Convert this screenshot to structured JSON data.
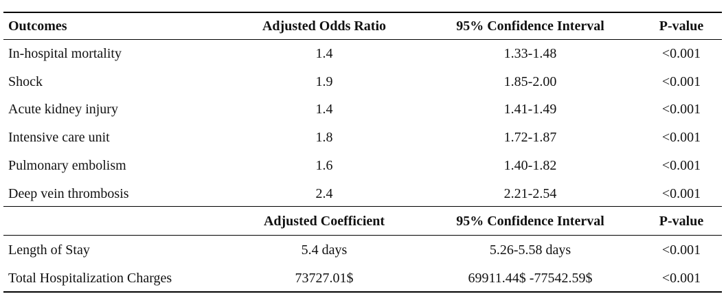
{
  "table": {
    "header": [
      "Outcomes",
      "Adjusted Odds Ratio",
      "95% Confidence Interval",
      "P-value"
    ],
    "rows": [
      [
        "In-hospital mortality",
        "1.4",
        "1.33-1.48",
        "<0.001"
      ],
      [
        "Shock",
        "1.9",
        "1.85-2.00",
        "<0.001"
      ],
      [
        "Acute kidney injury",
        "1.4",
        "1.41-1.49",
        "<0.001"
      ],
      [
        "Intensive care unit",
        "1.8",
        "1.72-1.87",
        "<0.001"
      ],
      [
        "Pulmonary embolism",
        "1.6",
        "1.40-1.82",
        "<0.001"
      ],
      [
        "Deep vein thrombosis",
        "2.4",
        "2.21-2.54",
        "<0.001"
      ]
    ],
    "header2": [
      "Adjusted Coefficient",
      "95% Confidence Interval",
      "P-value"
    ],
    "rows2": [
      [
        "Length of Stay",
        "5.4 days",
        "5.26-5.58 days",
        "<0.001"
      ],
      [
        "Total Hospitalization Charges",
        "73727.01$",
        "69911.44$ -77542.59$",
        "<0.001"
      ]
    ]
  }
}
